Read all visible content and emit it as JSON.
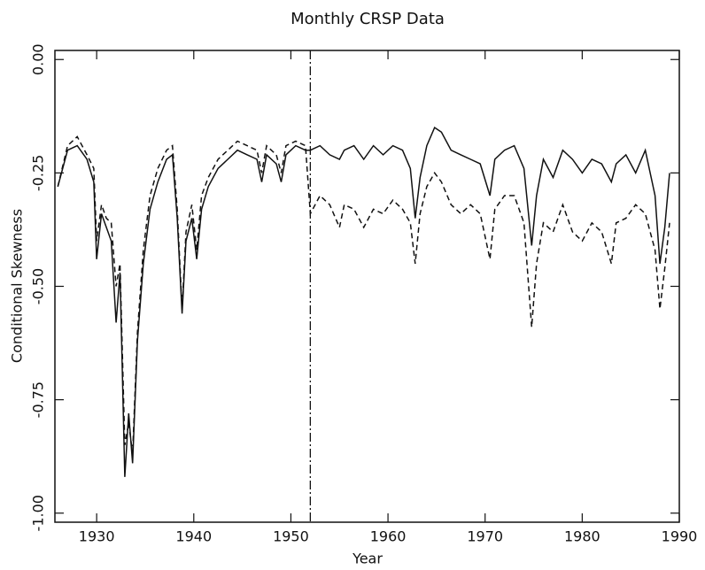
{
  "chart_data": {
    "type": "line",
    "title": "Monthly CRSP Data",
    "x_label": "Year",
    "y_label": "Conditional Skewness",
    "x": [
      1926,
      1927,
      1928,
      1929,
      1929.7,
      1930,
      1930.5,
      1931,
      1931.5,
      1932,
      1932.4,
      1932.9,
      1933.3,
      1933.7,
      1934.2,
      1934.8,
      1935.5,
      1936.3,
      1937.2,
      1937.8,
      1938.3,
      1938.8,
      1939.2,
      1939.8,
      1940.3,
      1940.8,
      1941.5,
      1942.5,
      1943.5,
      1944.5,
      1945.5,
      1946.5,
      1947,
      1947.5,
      1948.5,
      1949,
      1949.5,
      1950.5,
      1951.5,
      1952,
      1953,
      1954,
      1955,
      1955.5,
      1956.5,
      1957.5,
      1958.5,
      1959.5,
      1960.5,
      1961.5,
      1962.3,
      1962.8,
      1963.3,
      1964,
      1964.8,
      1965.5,
      1966.5,
      1967.5,
      1968.5,
      1969.5,
      1970.5,
      1971,
      1972,
      1973,
      1974,
      1974.8,
      1975.3,
      1976,
      1977,
      1978,
      1979,
      1980,
      1981,
      1982,
      1983,
      1983.5,
      1984.5,
      1985.5,
      1986.5,
      1987.5,
      1988,
      1988.5,
      1989
    ],
    "series": [
      {
        "color": "#111111",
        "dash": "solid",
        "values": [
          -0.28,
          -0.2,
          -0.19,
          -0.22,
          -0.27,
          -0.44,
          -0.34,
          -0.37,
          -0.4,
          -0.58,
          -0.47,
          -0.92,
          -0.78,
          -0.89,
          -0.62,
          -0.45,
          -0.33,
          -0.27,
          -0.22,
          -0.21,
          -0.35,
          -0.56,
          -0.4,
          -0.35,
          -0.44,
          -0.33,
          -0.28,
          -0.24,
          -0.22,
          -0.2,
          -0.21,
          -0.22,
          -0.27,
          -0.21,
          -0.23,
          -0.27,
          -0.21,
          -0.19,
          -0.2,
          -0.2,
          -0.19,
          -0.21,
          -0.22,
          -0.2,
          -0.19,
          -0.22,
          -0.19,
          -0.21,
          -0.19,
          -0.2,
          -0.24,
          -0.35,
          -0.26,
          -0.19,
          -0.15,
          -0.16,
          -0.2,
          -0.21,
          -0.22,
          -0.23,
          -0.3,
          -0.22,
          -0.2,
          -0.19,
          -0.24,
          -0.41,
          -0.3,
          -0.22,
          -0.26,
          -0.2,
          -0.22,
          -0.25,
          -0.22,
          -0.23,
          -0.27,
          -0.23,
          -0.21,
          -0.25,
          -0.2,
          -0.3,
          -0.45,
          -0.37,
          -0.25
        ]
      },
      {
        "color": "#111111",
        "dash": "dashed",
        "values": [
          -0.28,
          -0.19,
          -0.17,
          -0.21,
          -0.24,
          -0.4,
          -0.32,
          -0.35,
          -0.36,
          -0.5,
          -0.45,
          -0.85,
          -0.8,
          -0.87,
          -0.6,
          -0.42,
          -0.3,
          -0.24,
          -0.2,
          -0.19,
          -0.33,
          -0.55,
          -0.38,
          -0.32,
          -0.42,
          -0.3,
          -0.26,
          -0.22,
          -0.2,
          -0.18,
          -0.19,
          -0.2,
          -0.25,
          -0.19,
          -0.21,
          -0.25,
          -0.19,
          -0.18,
          -0.19,
          -0.34,
          -0.3,
          -0.32,
          -0.37,
          -0.32,
          -0.33,
          -0.37,
          -0.33,
          -0.34,
          -0.31,
          -0.33,
          -0.36,
          -0.45,
          -0.34,
          -0.28,
          -0.25,
          -0.27,
          -0.32,
          -0.34,
          -0.32,
          -0.34,
          -0.44,
          -0.33,
          -0.3,
          -0.3,
          -0.36,
          -0.59,
          -0.45,
          -0.36,
          -0.38,
          -0.32,
          -0.38,
          -0.4,
          -0.36,
          -0.38,
          -0.45,
          -0.36,
          -0.35,
          -0.32,
          -0.34,
          -0.42,
          -0.55,
          -0.46,
          -0.36
        ]
      }
    ],
    "vlines": [
      1952
    ],
    "xlim": [
      1925.7,
      1990
    ],
    "ylim": [
      -1.02,
      0.02
    ],
    "xticks": [
      1930,
      1940,
      1950,
      1960,
      1970,
      1980,
      1990
    ],
    "yticks": [
      {
        "value": 0,
        "label": "0.00"
      },
      -0.25,
      {
        "value": -0.5,
        "label": "-0.50"
      },
      -0.75,
      {
        "value": -1,
        "label": "-1.00"
      }
    ]
  }
}
